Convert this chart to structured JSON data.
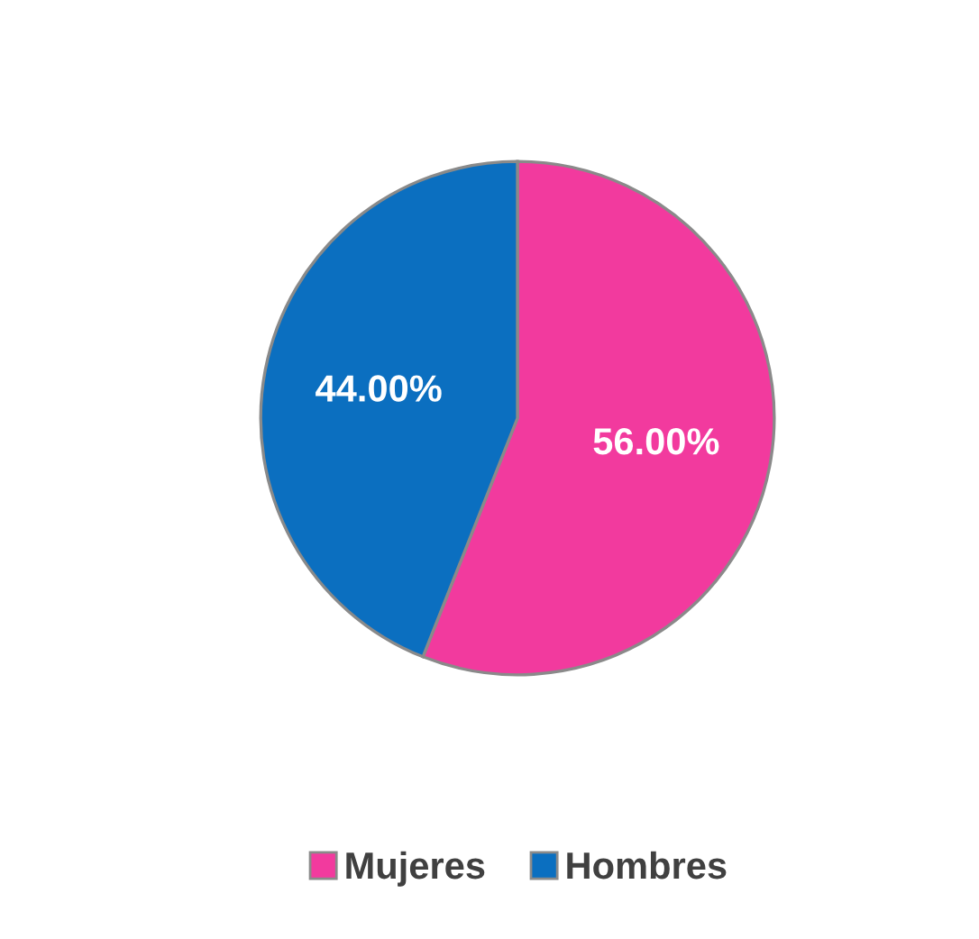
{
  "chart_data": {
    "type": "pie",
    "categories": [
      "Mujeres",
      "Hombres"
    ],
    "values": [
      56,
      44
    ],
    "colors": [
      "#f23a9e",
      "#0b6fc0"
    ],
    "value_labels": [
      "56.00%",
      "44.00%"
    ],
    "legend": "bottom"
  }
}
